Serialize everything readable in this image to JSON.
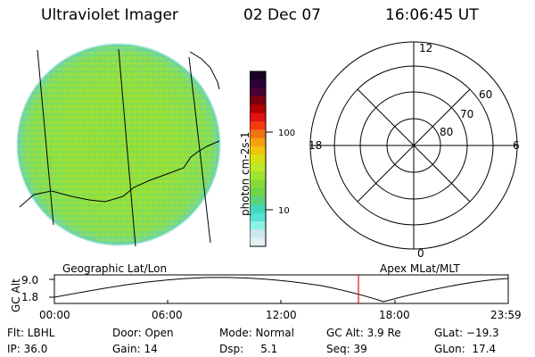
{
  "header": {
    "title": "Ultraviolet Imager",
    "date": "02 Dec 07",
    "time": "16:06:45 UT"
  },
  "colorbar": {
    "label": "photon cm-2s-1",
    "ticks": [
      "100",
      "10"
    ],
    "colors": [
      "#1a0022",
      "#2d003a",
      "#4a0033",
      "#7a0010",
      "#b00000",
      "#e31111",
      "#f23a0e",
      "#f07412",
      "#f4a010",
      "#f0c40f",
      "#d9e012",
      "#bde82a",
      "#9ee42f",
      "#86d83a",
      "#6fd44b",
      "#5bd27a",
      "#41d8b7",
      "#56e2d5",
      "#8ff0e5",
      "#cde7ef",
      "#e6eef3"
    ]
  },
  "polar": {
    "mlt_labels": {
      "top": "12",
      "left": "18",
      "right": "6",
      "bottom": "0"
    },
    "lat_labels": [
      "60",
      "70",
      "80"
    ]
  },
  "altplot": {
    "ylabel": "GC Alt",
    "yticks": [
      "9.0",
      "1.8"
    ],
    "left_title": "Geographic Lat/Lon",
    "right_title": "Apex MLat/MLT",
    "xticks": [
      "00:00",
      "06:00",
      "12:00",
      "18:00",
      "23:59"
    ],
    "marker_time_frac": 0.67
  },
  "info": {
    "row1": [
      "Flt: LBHL",
      "Door: Open",
      "Mode: Normal",
      "GC Alt: 3.9 Re",
      "GLat: −19.3"
    ],
    "row2": [
      "IP: 36.0",
      "Gain: 14",
      "Dsp:     5.1",
      "Seq: 39",
      "GLon:  17.4"
    ]
  }
}
